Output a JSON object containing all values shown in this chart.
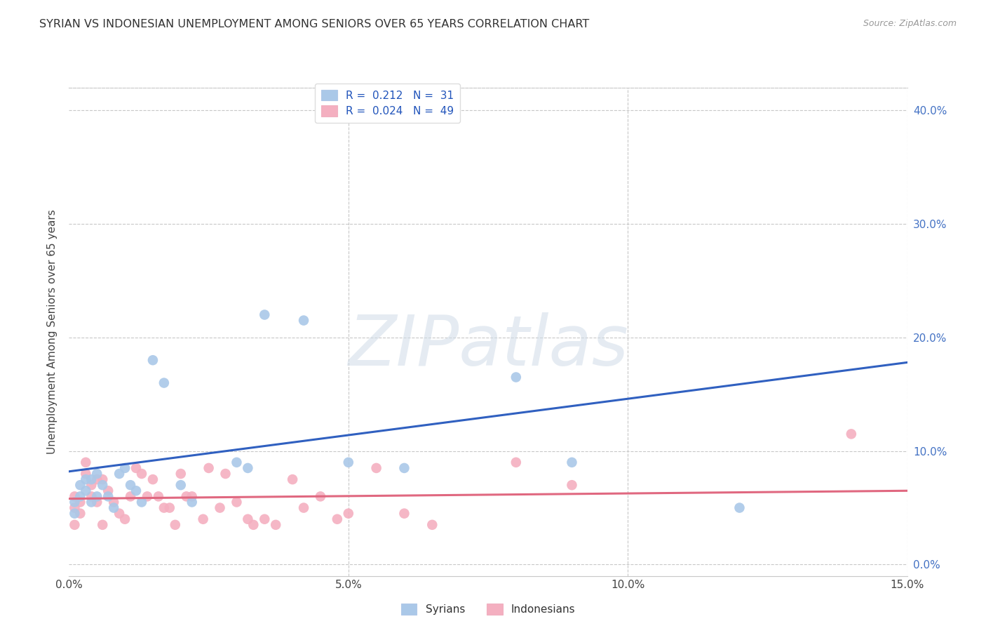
{
  "title": "SYRIAN VS INDONESIAN UNEMPLOYMENT AMONG SENIORS OVER 65 YEARS CORRELATION CHART",
  "source": "Source: ZipAtlas.com",
  "ylabel": "Unemployment Among Seniors over 65 years",
  "xlabel_ticks": [
    "0.0%",
    "5.0%",
    "10.0%",
    "15.0%"
  ],
  "xlabel_vals": [
    0.0,
    0.05,
    0.1,
    0.15
  ],
  "ylabel_ticks": [
    "0.0%",
    "10.0%",
    "20.0%",
    "30.0%",
    "40.0%"
  ],
  "ylabel_vals": [
    0.0,
    0.1,
    0.2,
    0.3,
    0.4
  ],
  "xlim": [
    0.0,
    0.15
  ],
  "ylim": [
    -0.01,
    0.42
  ],
  "ylim_display": [
    0.0,
    0.42
  ],
  "syrian_R": "0.212",
  "syrian_N": "31",
  "indonesian_R": "0.024",
  "indonesian_N": "49",
  "syrian_color": "#aac8e8",
  "indonesian_color": "#f4afc0",
  "syrian_line_color": "#3060c0",
  "indonesian_line_color": "#e06880",
  "syrians_x": [
    0.001,
    0.001,
    0.002,
    0.002,
    0.003,
    0.003,
    0.004,
    0.004,
    0.005,
    0.005,
    0.006,
    0.007,
    0.008,
    0.009,
    0.01,
    0.011,
    0.012,
    0.013,
    0.015,
    0.017,
    0.02,
    0.022,
    0.03,
    0.032,
    0.035,
    0.042,
    0.05,
    0.06,
    0.08,
    0.09,
    0.12
  ],
  "syrians_y": [
    0.045,
    0.055,
    0.06,
    0.07,
    0.065,
    0.075,
    0.055,
    0.075,
    0.06,
    0.08,
    0.07,
    0.06,
    0.05,
    0.08,
    0.085,
    0.07,
    0.065,
    0.055,
    0.18,
    0.16,
    0.07,
    0.055,
    0.09,
    0.085,
    0.22,
    0.215,
    0.09,
    0.085,
    0.165,
    0.09,
    0.05
  ],
  "indonesians_x": [
    0.001,
    0.001,
    0.001,
    0.002,
    0.002,
    0.003,
    0.003,
    0.004,
    0.004,
    0.005,
    0.005,
    0.006,
    0.006,
    0.007,
    0.008,
    0.009,
    0.01,
    0.011,
    0.012,
    0.013,
    0.014,
    0.015,
    0.016,
    0.017,
    0.018,
    0.019,
    0.02,
    0.021,
    0.022,
    0.024,
    0.025,
    0.027,
    0.028,
    0.03,
    0.032,
    0.033,
    0.035,
    0.037,
    0.04,
    0.042,
    0.045,
    0.048,
    0.05,
    0.055,
    0.06,
    0.065,
    0.08,
    0.09,
    0.14
  ],
  "indonesians_y": [
    0.05,
    0.06,
    0.035,
    0.045,
    0.055,
    0.08,
    0.09,
    0.06,
    0.07,
    0.055,
    0.075,
    0.075,
    0.035,
    0.065,
    0.055,
    0.045,
    0.04,
    0.06,
    0.085,
    0.08,
    0.06,
    0.075,
    0.06,
    0.05,
    0.05,
    0.035,
    0.08,
    0.06,
    0.06,
    0.04,
    0.085,
    0.05,
    0.08,
    0.055,
    0.04,
    0.035,
    0.04,
    0.035,
    0.075,
    0.05,
    0.06,
    0.04,
    0.045,
    0.085,
    0.045,
    0.035,
    0.09,
    0.07,
    0.115
  ],
  "syrian_line_x": [
    0.0,
    0.15
  ],
  "syrian_line_y": [
    0.082,
    0.178
  ],
  "indonesian_line_x": [
    0.0,
    0.15
  ],
  "indonesian_line_y": [
    0.058,
    0.065
  ]
}
